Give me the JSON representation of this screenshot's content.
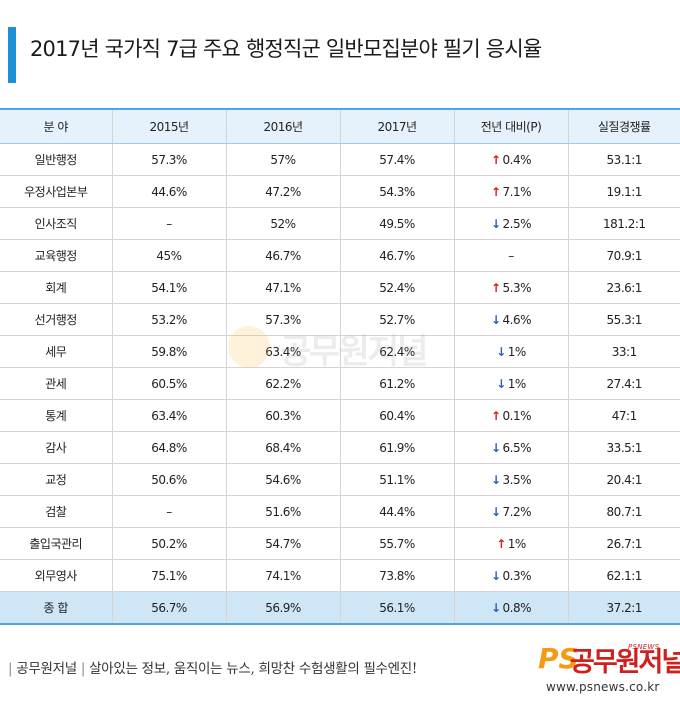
{
  "title": "2017년 국가직 7급 주요 행정직군 일반모집분야 필기 응시율",
  "headers": [
    "분 야",
    "2015년",
    "2016년",
    "2017년",
    "전년 대비(P)",
    "실질경쟁률"
  ],
  "rows": [
    {
      "name": "일반행정",
      "y2015": "57.3%",
      "y2016": "57%",
      "y2017": "57.4%",
      "trend": "up",
      "change": "0.4%",
      "ratio": "53.1:1"
    },
    {
      "name": "우정사업본부",
      "y2015": "44.6%",
      "y2016": "47.2%",
      "y2017": "54.3%",
      "trend": "up",
      "change": "7.1%",
      "ratio": "19.1:1"
    },
    {
      "name": "인사조직",
      "y2015": "–",
      "y2016": "52%",
      "y2017": "49.5%",
      "trend": "down",
      "change": "2.5%",
      "ratio": "181.2:1"
    },
    {
      "name": "교육행정",
      "y2015": "45%",
      "y2016": "46.7%",
      "y2017": "46.7%",
      "trend": "none",
      "change": "–",
      "ratio": "70.9:1"
    },
    {
      "name": "회계",
      "y2015": "54.1%",
      "y2016": "47.1%",
      "y2017": "52.4%",
      "trend": "up",
      "change": "5.3%",
      "ratio": "23.6:1"
    },
    {
      "name": "선거행정",
      "y2015": "53.2%",
      "y2016": "57.3%",
      "y2017": "52.7%",
      "trend": "down",
      "change": "4.6%",
      "ratio": "55.3:1"
    },
    {
      "name": "세무",
      "y2015": "59.8%",
      "y2016": "63.4%",
      "y2017": "62.4%",
      "trend": "down",
      "change": "1%",
      "ratio": "33:1"
    },
    {
      "name": "관세",
      "y2015": "60.5%",
      "y2016": "62.2%",
      "y2017": "61.2%",
      "trend": "down",
      "change": "1%",
      "ratio": "27.4:1"
    },
    {
      "name": "통계",
      "y2015": "63.4%",
      "y2016": "60.3%",
      "y2017": "60.4%",
      "trend": "up",
      "change": "0.1%",
      "ratio": "47:1"
    },
    {
      "name": "감사",
      "y2015": "64.8%",
      "y2016": "68.4%",
      "y2017": "61.9%",
      "trend": "down",
      "change": "6.5%",
      "ratio": "33.5:1"
    },
    {
      "name": "교정",
      "y2015": "50.6%",
      "y2016": "54.6%",
      "y2017": "51.1%",
      "trend": "down",
      "change": "3.5%",
      "ratio": "20.4:1"
    },
    {
      "name": "검찰",
      "y2015": "–",
      "y2016": "51.6%",
      "y2017": "44.4%",
      "trend": "down",
      "change": "7.2%",
      "ratio": "80.7:1"
    },
    {
      "name": "출입국관리",
      "y2015": "50.2%",
      "y2016": "54.7%",
      "y2017": "55.7%",
      "trend": "up",
      "change": "1%",
      "ratio": "26.7:1"
    },
    {
      "name": "외무영사",
      "y2015": "75.1%",
      "y2016": "74.1%",
      "y2017": "73.8%",
      "trend": "down",
      "change": "0.3%",
      "ratio": "62.1:1"
    }
  ],
  "total": {
    "name": "종 합",
    "y2015": "56.7%",
    "y2016": "56.9%",
    "y2017": "56.1%",
    "trend": "down",
    "change": "0.8%",
    "ratio": "37.2:1"
  },
  "watermark": {
    "text": "공무원저널"
  },
  "footer": {
    "brand": "공무원저널",
    "slogan": "살아있는 정보, 움직이는 뉴스, 희망찬 수험생활의 필수엔진!",
    "logo_ps": "PS",
    "logo_kr": "공무원저널",
    "logo_en": "PSNEWS",
    "url": "www.psnews.co.kr"
  },
  "colors": {
    "accent": "#1e90d8",
    "header_bg": "#e6f2fb",
    "total_bg": "#cfe6f7",
    "up": "#d71d1d",
    "down": "#2a5fb0",
    "logo_red": "#d01f1f",
    "logo_orange": "#f39c12"
  }
}
